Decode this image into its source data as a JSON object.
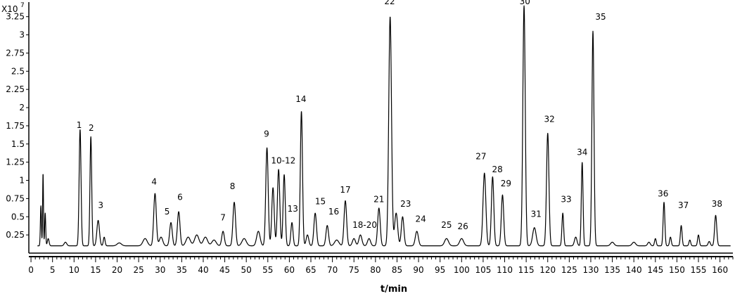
{
  "chart_data": {
    "type": "line",
    "title": "",
    "xlabel": "t/min",
    "ylabel": "",
    "scale_label": "X10",
    "scale_exponent": "7",
    "xlim": [
      -0.5,
      163
    ],
    "ylim": [
      0,
      3.45
    ],
    "x_ticks": [
      0,
      5,
      10,
      15,
      20,
      25,
      30,
      35,
      40,
      45,
      50,
      55,
      60,
      65,
      70,
      75,
      80,
      85,
      90,
      95,
      100,
      105,
      110,
      115,
      120,
      125,
      130,
      135,
      140,
      145,
      150,
      155,
      160
    ],
    "x_tick_labels": [
      "0",
      "5",
      "10",
      "15",
      "20",
      "25",
      "30",
      "35",
      "40",
      "45",
      "50",
      "55",
      "60",
      "65",
      "70",
      "75",
      "80",
      "85",
      "90",
      "95",
      "100",
      "105",
      "110",
      "115",
      "120",
      "125",
      "130",
      "135",
      "140",
      "145",
      "150",
      "155",
      "160"
    ],
    "y_ticks": [
      0.25,
      0.5,
      0.75,
      1,
      1.25,
      1.5,
      1.75,
      2,
      2.25,
      2.5,
      2.75,
      3,
      3.25
    ],
    "y_tick_labels": [
      "0.25",
      "0.5",
      "0.75",
      "1",
      "1.25",
      "1.5",
      "1.75",
      "2",
      "2.25",
      "2.5",
      "2.75",
      "3",
      "3.25"
    ],
    "baseline": 0.1,
    "peaks": [
      [
        2.3,
        0.55,
        0.12
      ],
      [
        2.8,
        1.0,
        0.1
      ],
      [
        3.3,
        0.45,
        0.12
      ],
      [
        4.0,
        0.1,
        0.2
      ],
      [
        8.0,
        0.05,
        0.3
      ],
      [
        11.4,
        1.6,
        0.22
      ],
      [
        13.9,
        1.5,
        0.2
      ],
      [
        15.6,
        0.35,
        0.3
      ],
      [
        17.0,
        0.12,
        0.2
      ],
      [
        20.5,
        0.04,
        0.5
      ],
      [
        26.5,
        0.1,
        0.5
      ],
      [
        28.8,
        0.72,
        0.3
      ],
      [
        30.2,
        0.12,
        0.4
      ],
      [
        32.5,
        0.32,
        0.3
      ],
      [
        34.3,
        0.47,
        0.3
      ],
      [
        36.5,
        0.12,
        0.5
      ],
      [
        38.5,
        0.15,
        0.5
      ],
      [
        40.5,
        0.12,
        0.5
      ],
      [
        42.5,
        0.08,
        0.5
      ],
      [
        44.6,
        0.2,
        0.3
      ],
      [
        47.2,
        0.6,
        0.3
      ],
      [
        49.5,
        0.1,
        0.5
      ],
      [
        52.8,
        0.2,
        0.4
      ],
      [
        54.8,
        1.35,
        0.28
      ],
      [
        56.2,
        0.8,
        0.28
      ],
      [
        57.5,
        1.05,
        0.28
      ],
      [
        58.8,
        0.98,
        0.25
      ],
      [
        60.6,
        0.32,
        0.25
      ],
      [
        62.8,
        1.85,
        0.25
      ],
      [
        64.2,
        0.15,
        0.3
      ],
      [
        66.0,
        0.45,
        0.3
      ],
      [
        68.8,
        0.28,
        0.3
      ],
      [
        71.0,
        0.08,
        0.5
      ],
      [
        73.0,
        0.62,
        0.3
      ],
      [
        75.0,
        0.1,
        0.35
      ],
      [
        76.5,
        0.15,
        0.35
      ],
      [
        78.5,
        0.1,
        0.35
      ],
      [
        80.8,
        0.52,
        0.3
      ],
      [
        83.4,
        3.15,
        0.32
      ],
      [
        84.8,
        0.45,
        0.35
      ],
      [
        86.3,
        0.4,
        0.3
      ],
      [
        89.6,
        0.2,
        0.35
      ],
      [
        96.5,
        0.1,
        0.45
      ],
      [
        100.0,
        0.1,
        0.45
      ],
      [
        105.3,
        1.0,
        0.33
      ],
      [
        107.2,
        0.95,
        0.28
      ],
      [
        109.5,
        0.7,
        0.28
      ],
      [
        114.5,
        3.3,
        0.28
      ],
      [
        116.9,
        0.25,
        0.4
      ],
      [
        120.0,
        1.55,
        0.28
      ],
      [
        123.5,
        0.45,
        0.2
      ],
      [
        126.5,
        0.12,
        0.3
      ],
      [
        128.0,
        1.15,
        0.2
      ],
      [
        130.5,
        2.95,
        0.24
      ],
      [
        135.0,
        0.05,
        0.4
      ],
      [
        140.0,
        0.05,
        0.4
      ],
      [
        143.5,
        0.05,
        0.3
      ],
      [
        145.0,
        0.1,
        0.2
      ],
      [
        147.0,
        0.6,
        0.2
      ],
      [
        148.5,
        0.12,
        0.2
      ],
      [
        151.0,
        0.28,
        0.2
      ],
      [
        153.0,
        0.08,
        0.2
      ],
      [
        155.0,
        0.15,
        0.2
      ],
      [
        157.5,
        0.06,
        0.25
      ],
      [
        159.0,
        0.42,
        0.25
      ]
    ],
    "peak_labels": [
      {
        "text": "1",
        "x": 11.2,
        "y": 1.72
      },
      {
        "text": "2",
        "x": 14.0,
        "y": 1.68
      },
      {
        "text": "3",
        "x": 16.2,
        "y": 0.62
      },
      {
        "text": "4",
        "x": 28.6,
        "y": 0.94
      },
      {
        "text": "5",
        "x": 31.6,
        "y": 0.53
      },
      {
        "text": "6",
        "x": 34.6,
        "y": 0.73
      },
      {
        "text": "7",
        "x": 44.6,
        "y": 0.45
      },
      {
        "text": "8",
        "x": 46.8,
        "y": 0.88
      },
      {
        "text": "9",
        "x": 54.7,
        "y": 1.6
      },
      {
        "text": "10-12",
        "x": 58.6,
        "y": 1.23
      },
      {
        "text": "13",
        "x": 60.8,
        "y": 0.57
      },
      {
        "text": "14",
        "x": 62.7,
        "y": 2.08
      },
      {
        "text": "15",
        "x": 67.2,
        "y": 0.67
      },
      {
        "text": "16",
        "x": 70.3,
        "y": 0.53
      },
      {
        "text": "17",
        "x": 73.0,
        "y": 0.83
      },
      {
        "text": "18-20",
        "x": 77.5,
        "y": 0.35
      },
      {
        "text": "21",
        "x": 80.8,
        "y": 0.7
      },
      {
        "text": "22",
        "x": 83.3,
        "y": 3.42
      },
      {
        "text": "23",
        "x": 87.0,
        "y": 0.64
      },
      {
        "text": "24",
        "x": 90.5,
        "y": 0.43
      },
      {
        "text": "25",
        "x": 96.5,
        "y": 0.35
      },
      {
        "text": "26",
        "x": 100.3,
        "y": 0.33
      },
      {
        "text": "27",
        "x": 104.5,
        "y": 1.29
      },
      {
        "text": "28",
        "x": 108.3,
        "y": 1.11
      },
      {
        "text": "29",
        "x": 110.3,
        "y": 0.92
      },
      {
        "text": "30",
        "x": 114.7,
        "y": 3.42
      },
      {
        "text": "31",
        "x": 117.3,
        "y": 0.5
      },
      {
        "text": "32",
        "x": 120.4,
        "y": 1.8
      },
      {
        "text": "33",
        "x": 124.3,
        "y": 0.7
      },
      {
        "text": "34",
        "x": 128.0,
        "y": 1.35
      },
      {
        "text": "35",
        "x": 132.3,
        "y": 3.21
      },
      {
        "text": "36",
        "x": 146.8,
        "y": 0.78
      },
      {
        "text": "37",
        "x": 151.5,
        "y": 0.62
      },
      {
        "text": "38",
        "x": 159.3,
        "y": 0.64
      }
    ],
    "grid": false,
    "legend": "none"
  }
}
